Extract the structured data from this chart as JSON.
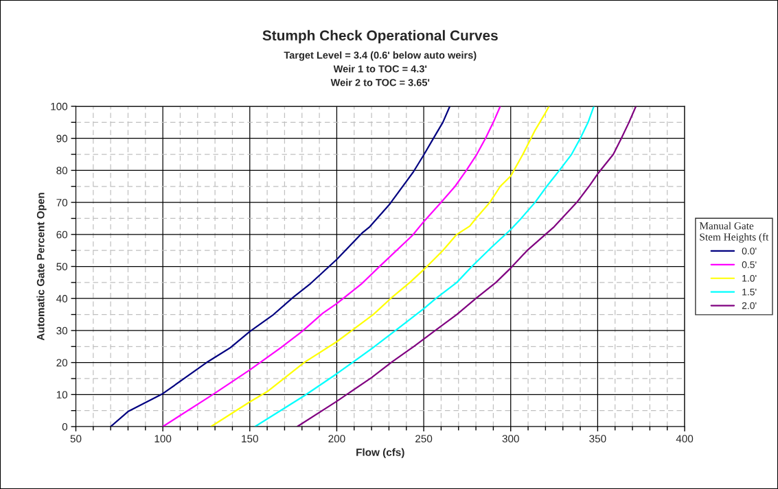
{
  "chart_data": {
    "type": "line",
    "title": "Stumph Check Operational Curves",
    "subtitle": "Target Level = 3.4 (0.6' below auto weirs)\nWeir 1 to TOC = 4.3'\nWeir 2 to TOC = 3.65'",
    "xlabel": "Flow (cfs)",
    "ylabel": "Automatic Gate Percent Open",
    "legend_title": "Manual Gate Stem Heights (ft",
    "xlim": [
      50,
      400
    ],
    "xticks": [
      50,
      100,
      150,
      200,
      250,
      300,
      350,
      400
    ],
    "ylim": [
      0,
      100
    ],
    "yticks": [
      0,
      10,
      20,
      30,
      40,
      50,
      60,
      70,
      80,
      90,
      100
    ],
    "grid": true,
    "legend": "right",
    "marker": "none",
    "line_style": "solid",
    "series": [
      {
        "name": "0.0'",
        "color": "#000080",
        "x": [
          70,
          80,
          100,
          126,
          139,
          150,
          163,
          175,
          185,
          200,
          214.5,
          219,
          230.5,
          244,
          250,
          256,
          261,
          265
        ],
        "values": [
          0,
          4.7,
          10.3,
          20.3,
          24.7,
          29.7,
          34.7,
          40.4,
          44.7,
          52.2,
          60.4,
          62.4,
          69.5,
          79.5,
          84.8,
          90.4,
          95,
          100
        ]
      },
      {
        "name": "0.5'",
        "color": "#ff00ff",
        "x": [
          100,
          129,
          150,
          168,
          180,
          192,
          200,
          214.5,
          225,
          243.5,
          250,
          260,
          268,
          274.5,
          280.5,
          285.5,
          290,
          294
        ],
        "values": [
          0,
          10.1,
          17.7,
          24.7,
          29.7,
          35.4,
          38.4,
          44.7,
          50.2,
          59.7,
          64,
          70,
          75,
          80,
          85,
          90,
          95,
          100
        ]
      },
      {
        "name": "1.0'",
        "color": "#ffff00",
        "x": [
          127.7,
          150,
          160.5,
          181.5,
          200,
          221,
          231,
          242,
          250,
          261,
          269,
          276.5,
          280,
          288,
          294,
          300,
          307,
          314,
          319.5,
          322
        ],
        "values": [
          0,
          7.7,
          11.1,
          20.1,
          26.5,
          35,
          40,
          45,
          49,
          55,
          60,
          62.6,
          65,
          70,
          75,
          78.2,
          85,
          92.5,
          97.5,
          100
        ]
      },
      {
        "name": "1.5'",
        "color": "#00ffff",
        "x": [
          153,
          181.5,
          200,
          221,
          233.5,
          250,
          257,
          269,
          277.7,
          289,
          300,
          306,
          314,
          320.7,
          328,
          335,
          340,
          344.5,
          347.8
        ],
        "values": [
          0,
          9.7,
          16.5,
          24.7,
          29.9,
          36.8,
          40,
          45,
          50,
          56,
          61.5,
          65,
          70,
          75,
          80,
          85,
          90,
          95,
          100
        ]
      },
      {
        "name": "2.0'",
        "color": "#800080",
        "x": [
          177.3,
          200,
          220,
          231.5,
          244.5,
          256.6,
          269,
          280,
          291.5,
          300,
          309.5,
          325,
          338,
          345,
          350,
          359,
          363.6,
          368,
          372
        ],
        "values": [
          0,
          7.9,
          15.3,
          20.1,
          25.1,
          30,
          35,
          40,
          45,
          49.5,
          55,
          62.4,
          70,
          75,
          78.9,
          85,
          90,
          95,
          100
        ]
      }
    ]
  }
}
